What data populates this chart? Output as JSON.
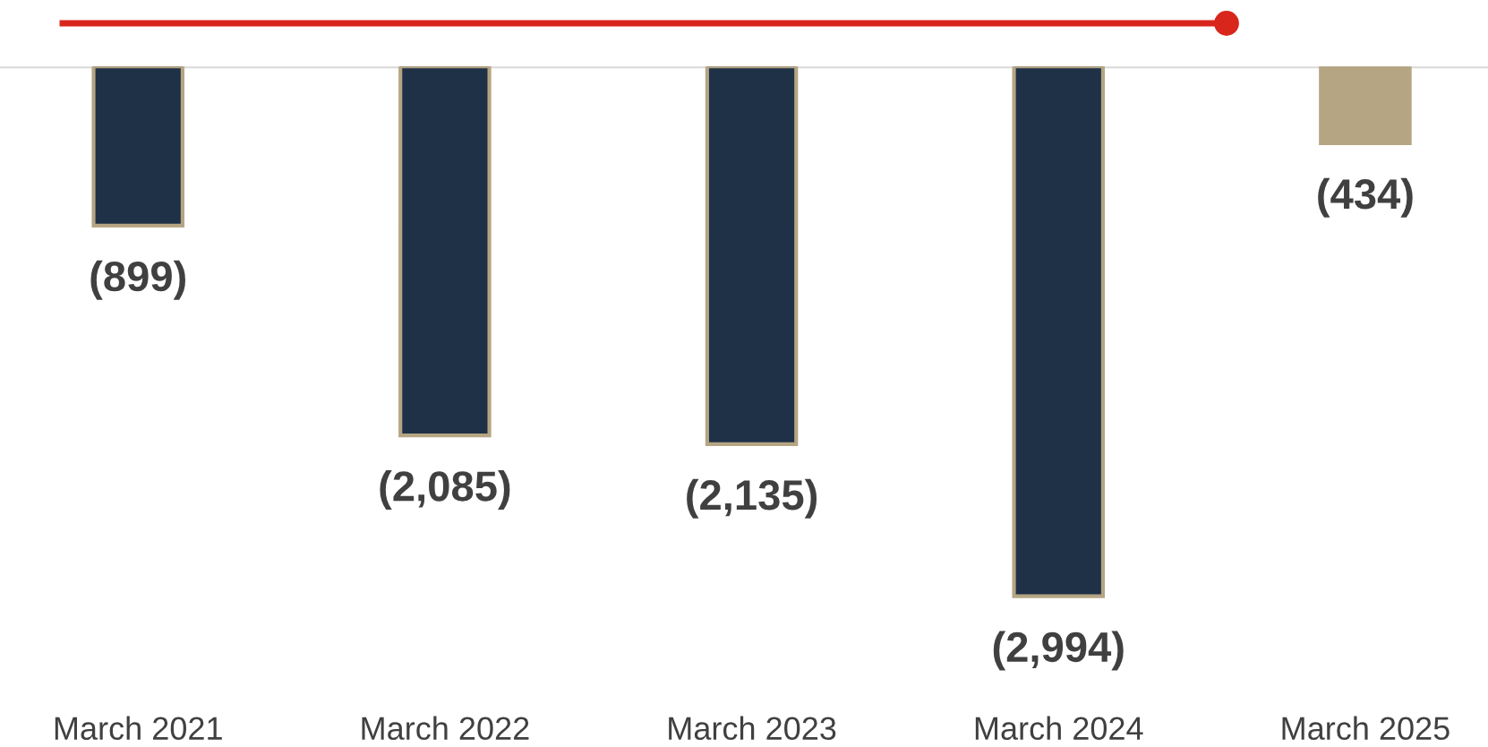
{
  "chart_data": {
    "type": "bar",
    "categories": [
      "March 2021",
      "March 2022",
      "March 2023",
      "March 2024",
      "March 2025"
    ],
    "values": [
      -899,
      -2085,
      -2135,
      -2994,
      -434
    ],
    "colors": [
      "#1f3147",
      "#1f3147",
      "#1f3147",
      "#1f3147",
      "#b5a582"
    ],
    "value_labels": [
      "(899)",
      "(2,085)",
      "(2,135)",
      "(2,994)",
      "(434)"
    ],
    "grid": false,
    "legend": false,
    "tick_labels": "x"
  }
}
